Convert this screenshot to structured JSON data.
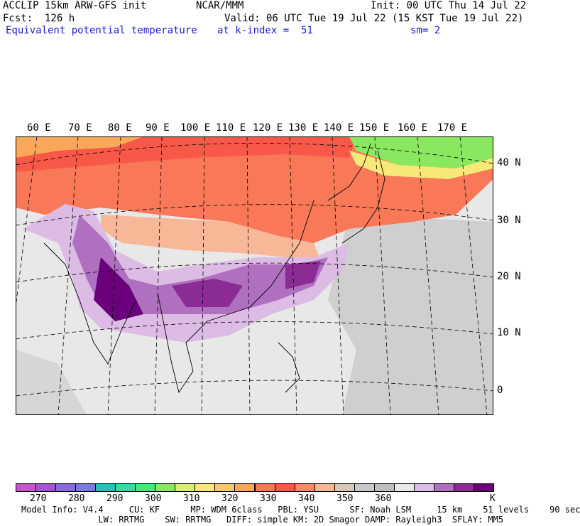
{
  "header": {
    "model": "ACCLIP 15km ARW-GFS init",
    "org": "NCAR/MMM",
    "init": "Init: 00 UTC Thu 14 Jul 22",
    "fcst": "Fcst:  126 h",
    "valid": "Valid: 06 UTC Tue 19 Jul 22 (15 KST Tue 19 Jul 22)",
    "field": "Equivalent potential temperature",
    "level": "at k-index =  51",
    "smooth": "sm= 2"
  },
  "longitudes": [
    "60 E",
    "70 E",
    "80 E",
    "90 E",
    "100 E",
    "110 E",
    "120 E",
    "130 E",
    "140 E",
    "150 E",
    "160 E",
    "170 E"
  ],
  "latitudes": [
    "40 N",
    "30 N",
    "20 N",
    "10 N",
    "0"
  ],
  "colorbar": {
    "unit": "K",
    "ticks": [
      "270",
      "280",
      "290",
      "300",
      "310",
      "320",
      "330",
      "340",
      "350",
      "360"
    ],
    "colors": [
      "#c652cc",
      "#a853d6",
      "#8a6ae0",
      "#7a7ae6",
      "#2cc0b4",
      "#3ad8a4",
      "#46e87a",
      "#8ae860",
      "#d8ee70",
      "#f8e878",
      "#f8c868",
      "#f8a858",
      "#f87858",
      "#f85848",
      "#f88868",
      "#f8b898",
      "#d8c8b8",
      "#c8c8c8",
      "#bebebe",
      "#e8e8e8",
      "#dcbce4",
      "#b070c0",
      "#8a2c94",
      "#6a007a"
    ]
  },
  "footer": {
    "line1": "Model Info: V4.4     CU: KF      MP: WDM 6class   PBL: YSU      SF: Noah LSM     15 km    51 levels    90 sec",
    "line2": "               LW: RRTMG    SW: RRTMG   DIFF: simple KM: 2D Smagor DAMP: Rayleigh3  SFLAY: MM5"
  }
}
